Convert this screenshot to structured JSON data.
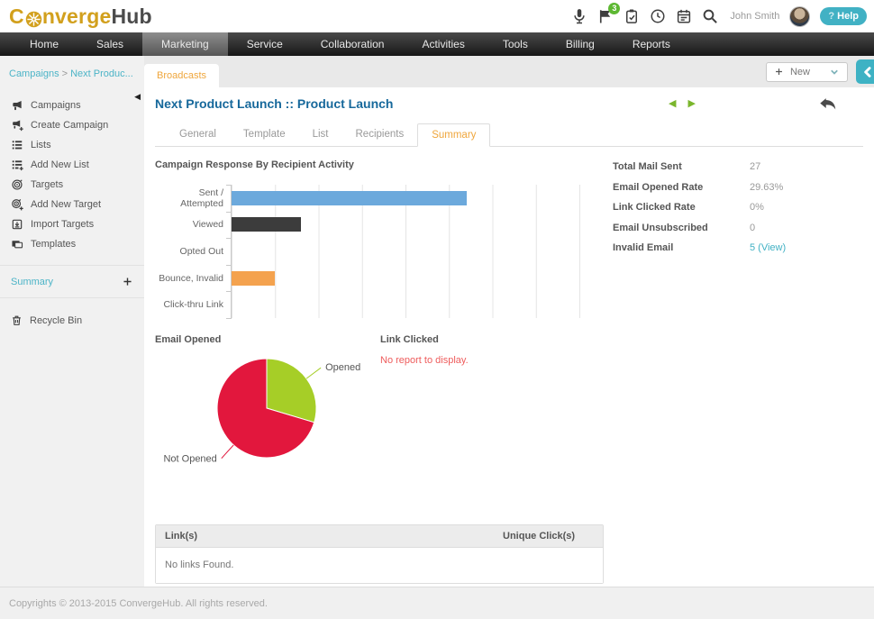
{
  "header": {
    "logo_prefix": "C",
    "logo_mid": "nverge",
    "logo_suffix": "Hub",
    "icons": [
      "microphone",
      "flag",
      "clipboard",
      "clock",
      "calendar",
      "search"
    ],
    "notification_count": "3",
    "user_name": "John Smith",
    "help_q": "?",
    "help_text": "Help"
  },
  "nav": {
    "items": [
      "Home",
      "Sales",
      "Marketing",
      "Service",
      "Collaboration",
      "Activities",
      "Tools",
      "Billing",
      "Reports"
    ],
    "active": "Marketing"
  },
  "breadcrumb": {
    "parts": [
      "Campaigns",
      "Next Produc..."
    ]
  },
  "strip": {
    "tab_label": "Broadcasts",
    "new_label": "New"
  },
  "sidebar": {
    "items": [
      {
        "label": "Campaigns",
        "icon": "megaphone"
      },
      {
        "label": "Create Campaign",
        "icon": "megaphone-plus"
      },
      {
        "label": "Lists",
        "icon": "list"
      },
      {
        "label": "Add New List",
        "icon": "list-plus"
      },
      {
        "label": "Targets",
        "icon": "target"
      },
      {
        "label": "Add New Target",
        "icon": "target-plus"
      },
      {
        "label": "Import Targets",
        "icon": "import"
      },
      {
        "label": "Templates",
        "icon": "templates"
      }
    ],
    "summary_label": "Summary",
    "recycle_label": "Recycle Bin"
  },
  "main": {
    "title": "Next Product Launch :: Product Launch",
    "tabs": [
      "General",
      "Template",
      "List",
      "Recipients",
      "Summary"
    ],
    "active_tab": "Summary",
    "stats": [
      {
        "label": "Total Mail Sent",
        "value": "27",
        "link": false
      },
      {
        "label": "Email Opened Rate",
        "value": "29.63%",
        "link": false
      },
      {
        "label": "Link Clicked Rate",
        "value": "0%",
        "link": false
      },
      {
        "label": "Email Unsubscribed",
        "value": "0",
        "link": false
      },
      {
        "label": "Invalid Email",
        "value": "5 (View)",
        "link": true
      }
    ],
    "link_clicked_title": "Link Clicked",
    "link_clicked_empty": "No report to display.",
    "links_table": {
      "headers": [
        "Link(s)",
        "Unique Click(s)"
      ],
      "empty_text": "No links Found."
    }
  },
  "chart_data": [
    {
      "type": "bar",
      "orientation": "horizontal",
      "title": "Campaign Response By Recipient Activity",
      "categories": [
        "Sent / Attempted",
        "Viewed",
        "Opted Out",
        "Bounce, Invalid",
        "Click-thru Link"
      ],
      "values": [
        27,
        8,
        0,
        5,
        0
      ],
      "colors": [
        "#6CA9DC",
        "#3C3C3C",
        "#D9D9D9",
        "#F4A24E",
        "#D9D9D9"
      ],
      "xlim": [
        0,
        40
      ],
      "gridline_interval": 5,
      "grid": true,
      "legend": false
    },
    {
      "type": "pie",
      "title": "Email Opened",
      "labels": [
        "Opened",
        "Not Opened"
      ],
      "values": [
        8,
        19
      ],
      "percents": [
        "29.63%",
        "70.37%"
      ],
      "colors": [
        "#A6CE27",
        "#E2173D"
      ],
      "legend": false
    }
  ],
  "accent_colors": {
    "teal": "#41b1c4",
    "orange": "#efa63c",
    "title_blue": "#16689b",
    "error_red": "#ee5c5c",
    "green_arrow": "#7ab62c"
  },
  "footer": {
    "copyright": "Copyrights © 2013-2015 ConvergeHub. All rights reserved."
  }
}
